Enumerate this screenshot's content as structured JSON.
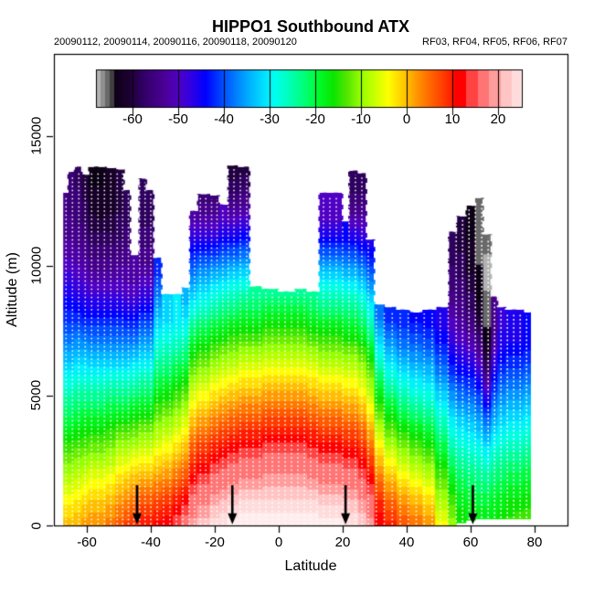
{
  "page": {
    "title": "HIPPO1 Southbound ATX",
    "subtitle_left": "20090112, 20090114, 20090116, 20090118, 20090120",
    "subtitle_right": "RF03, RF04, RF05, RF06, RF07"
  },
  "chart_data": {
    "type": "heatmap",
    "title": "HIPPO1 Southbound ATX",
    "xlabel": "Latitude",
    "ylabel": "Altitude (m)",
    "xlim": [
      -70.3,
      90.3
    ],
    "ylim": [
      0,
      18150
    ],
    "x_ticks": [
      -60,
      -40,
      -20,
      0,
      20,
      40,
      60,
      80
    ],
    "y_ticks": [
      0,
      5000,
      10000,
      15000
    ],
    "grid": false,
    "colorbar": {
      "position": "top-inside",
      "range": [
        -68,
        25.4
      ],
      "ticks": [
        -60,
        -50,
        -40,
        -30,
        -20,
        -10,
        0,
        10,
        20
      ]
    },
    "palette": {
      "cold_bands": [
        [
          -68.1,
          -67,
          "#b2b2b2"
        ],
        [
          -67,
          -66,
          "#8f8f8f"
        ],
        [
          -66,
          -65,
          "#696969"
        ],
        [
          -65,
          -64,
          "#3f3f3f"
        ]
      ],
      "stops": [
        [
          -64,
          "#0d0016"
        ],
        [
          -61,
          "#1c0030"
        ],
        [
          -57,
          "#35006e"
        ],
        [
          -53,
          "#4b0096"
        ],
        [
          -50,
          "#5000c3"
        ],
        [
          -47,
          "#2e00e6"
        ],
        [
          -44,
          "#0000ff"
        ],
        [
          -40,
          "#0050ff"
        ],
        [
          -35,
          "#00a8ff"
        ],
        [
          -31,
          "#00e4ff"
        ],
        [
          -29,
          "#00fff2"
        ],
        [
          -26,
          "#00ffbe"
        ],
        [
          -22,
          "#00ff6e"
        ],
        [
          -19,
          "#00fa28"
        ],
        [
          -16,
          "#0ae600"
        ],
        [
          -13,
          "#55e600"
        ],
        [
          -10,
          "#96ff00"
        ],
        [
          -7,
          "#c8ff00"
        ],
        [
          -4,
          "#ffff00"
        ],
        [
          0,
          "#ffbe00"
        ],
        [
          4,
          "#ff7800"
        ],
        [
          8,
          "#ff3c00"
        ],
        [
          10.5,
          "#ff1400"
        ]
      ],
      "warm_bands": [
        [
          10.5,
          13,
          "#ff0000"
        ],
        [
          13,
          15.5,
          "#ff4242"
        ],
        [
          15.5,
          18,
          "#ff7575"
        ],
        [
          18,
          20.5,
          "#ff9c9c"
        ],
        [
          20.5,
          23,
          "#ffc4c4"
        ],
        [
          23,
          25,
          "#ffdcdc"
        ],
        [
          25,
          26.2,
          "#ffeded"
        ]
      ],
      "band_quantize_c": 2,
      "overlay_color": "#ffffff",
      "arrow_color": "#000000",
      "axis_color": "#000000"
    },
    "columns": [
      {
        "lat0": -67.3,
        "lat1": -66,
        "top_m": 12800,
        "base_m": 0,
        "temps_c_by_km": [
          0,
          -4,
          -9,
          -14,
          -20,
          -25,
          -31,
          -37,
          -42,
          -46,
          -50,
          -53,
          -55
        ]
      },
      {
        "lat0": -66,
        "lat1": -64,
        "top_m": 13600,
        "base_m": 0,
        "temps_c_by_km": [
          0,
          -4,
          -9,
          -14,
          -20,
          -25,
          -31,
          -37,
          -42,
          -46,
          -50,
          -53,
          -55,
          -56
        ]
      },
      {
        "lat0": -64,
        "lat1": -61.5,
        "top_m": 13800,
        "base_m": 0,
        "temps_c_by_km": [
          1,
          -3,
          -8,
          -13,
          -19,
          -24,
          -30,
          -36,
          -42,
          -47,
          -51,
          -54,
          -56,
          -57,
          -58
        ]
      },
      {
        "lat0": -61.5,
        "lat1": -59.5,
        "top_m": 13500,
        "base_m": 0,
        "temps_c_by_km": [
          2,
          -2,
          -7,
          -13,
          -18,
          -24,
          -30,
          -36,
          -43,
          -48,
          -52,
          -55,
          -58,
          -60
        ]
      },
      {
        "lat0": -59.5,
        "lat1": -57,
        "top_m": 13800,
        "base_m": 0,
        "temps_c_by_km": [
          3,
          -1,
          -6,
          -12,
          -18,
          -24,
          -30,
          -37,
          -43,
          -49,
          -54,
          -58,
          -61,
          -63,
          -64
        ]
      },
      {
        "lat0": -57,
        "lat1": -54,
        "top_m": 13800,
        "base_m": 0,
        "temps_c_by_km": [
          3,
          -1,
          -6,
          -12,
          -18,
          -24,
          -30,
          -37,
          -43,
          -49,
          -54,
          -58,
          -62,
          -63,
          -64
        ]
      },
      {
        "lat0": -54,
        "lat1": -51,
        "top_m": 13750,
        "base_m": 0,
        "temps_c_by_km": [
          4,
          0,
          -5,
          -11,
          -17,
          -23,
          -30,
          -37,
          -43,
          -49,
          -54,
          -58,
          -61,
          -63
        ]
      },
      {
        "lat0": -51,
        "lat1": -48.3,
        "top_m": 13700,
        "base_m": 0,
        "temps_c_by_km": [
          6,
          2,
          -3,
          -9,
          -16,
          -23,
          -30,
          -37,
          -43,
          -49,
          -53,
          -57,
          -59,
          -61
        ]
      },
      {
        "lat0": -48.3,
        "lat1": -46.3,
        "top_m": 12900,
        "base_m": 0,
        "temps_c_by_km": [
          8,
          3,
          -2,
          -9,
          -16,
          -23,
          -30,
          -37,
          -44,
          -50,
          -53,
          -56,
          -58
        ]
      },
      {
        "lat0": -46.3,
        "lat1": -43.8,
        "top_m": 10400,
        "base_m": 0,
        "temps_c_by_km": [
          9,
          4,
          -1,
          -8,
          -15,
          -22,
          -29,
          -37,
          -44,
          -50,
          -53
        ]
      },
      {
        "lat0": -43.8,
        "lat1": -41.3,
        "top_m": 13350,
        "base_m": 0,
        "temps_c_by_km": [
          11,
          6,
          0,
          -7,
          -14,
          -21,
          -28,
          -35,
          -42,
          -48,
          -53,
          -56,
          -58,
          -59
        ]
      },
      {
        "lat0": -41.3,
        "lat1": -39,
        "top_m": 12900,
        "base_m": 0,
        "temps_c_by_km": [
          11,
          6,
          0,
          -7,
          -14,
          -21,
          -28,
          -35,
          -42,
          -48,
          -53,
          -56,
          -58
        ]
      },
      {
        "lat0": -39,
        "lat1": -36.5,
        "top_m": 10300,
        "base_m": 0,
        "temps_c_by_km": [
          12,
          7,
          1,
          -5,
          -11,
          -17,
          -23,
          -28,
          -33,
          -38,
          -43
        ]
      },
      {
        "lat0": -36.5,
        "lat1": -33,
        "top_m": 8900,
        "base_m": 0,
        "temps_c_by_km": [
          13,
          8,
          2,
          -4,
          -10,
          -16,
          -22,
          -27,
          -32
        ]
      },
      {
        "lat0": -33,
        "lat1": -30.5,
        "top_m": 8900,
        "base_m": 0,
        "temps_c_by_km": [
          15,
          10,
          4,
          -2,
          -8,
          -14,
          -20,
          -26,
          -31
        ]
      },
      {
        "lat0": -30.5,
        "lat1": -28,
        "top_m": 9150,
        "base_m": 0,
        "temps_c_by_km": [
          17,
          12,
          6,
          0,
          -6,
          -12,
          -19,
          -25,
          -31,
          -35
        ]
      },
      {
        "lat0": -28,
        "lat1": -25.5,
        "top_m": 12100,
        "base_m": 0,
        "temps_c_by_km": [
          20,
          16,
          11,
          6,
          0,
          -6,
          -12,
          -19,
          -26,
          -33,
          -40,
          -46,
          -53
        ]
      },
      {
        "lat0": -25.5,
        "lat1": -21.5,
        "top_m": 12750,
        "base_m": 0,
        "temps_c_by_km": [
          22,
          18,
          13,
          8,
          2,
          -4,
          -10,
          -17,
          -24,
          -31,
          -38,
          -46,
          -53,
          -58
        ]
      },
      {
        "lat0": -21.5,
        "lat1": -18.5,
        "top_m": 12700,
        "base_m": 0,
        "temps_c_by_km": [
          24,
          20,
          15,
          10,
          4,
          -2,
          -8,
          -15,
          -22,
          -29,
          -37,
          -46,
          -53,
          -58
        ]
      },
      {
        "lat0": -18.5,
        "lat1": -16,
        "top_m": 12350,
        "base_m": 0,
        "temps_c_by_km": [
          25,
          21,
          16,
          11,
          5,
          -1,
          -7,
          -14,
          -21,
          -28,
          -36,
          -44,
          -51
        ]
      },
      {
        "lat0": -16,
        "lat1": -12.5,
        "top_m": 13850,
        "base_m": 0,
        "temps_c_by_km": [
          26,
          22,
          17,
          12,
          6,
          0,
          -6,
          -13,
          -20,
          -27,
          -35,
          -44,
          -52,
          -58,
          -62
        ]
      },
      {
        "lat0": -12.5,
        "lat1": -9,
        "top_m": 13800,
        "base_m": 0,
        "temps_c_by_km": [
          27,
          23,
          18,
          13,
          7,
          1,
          -5,
          -12,
          -19,
          -26,
          -34,
          -43,
          -51,
          -57,
          -61
        ]
      },
      {
        "lat0": -9,
        "lat1": -5,
        "top_m": 9200,
        "base_m": 0,
        "temps_c_by_km": [
          27,
          23,
          18,
          13,
          7,
          1,
          -5,
          -12,
          -19,
          -25
        ]
      },
      {
        "lat0": -5,
        "lat1": 0,
        "top_m": 9100,
        "base_m": 0,
        "temps_c_by_km": [
          27,
          23,
          19,
          14,
          8,
          2,
          -4,
          -11,
          -18,
          -24
        ]
      },
      {
        "lat0": 0,
        "lat1": 5,
        "top_m": 9000,
        "base_m": 0,
        "temps_c_by_km": [
          27,
          23,
          19,
          14,
          8,
          2,
          -4,
          -11,
          -18,
          -24
        ]
      },
      {
        "lat0": 5,
        "lat1": 9,
        "top_m": 9100,
        "base_m": 0,
        "temps_c_by_km": [
          27,
          23,
          19,
          14,
          8,
          2,
          -4,
          -11,
          -18,
          -24
        ]
      },
      {
        "lat0": 9,
        "lat1": 12.5,
        "top_m": 9000,
        "base_m": 0,
        "temps_c_by_km": [
          27,
          23,
          18,
          13,
          7,
          1,
          -5,
          -12,
          -19,
          -25
        ]
      },
      {
        "lat0": 12.5,
        "lat1": 16.5,
        "top_m": 12800,
        "base_m": 0,
        "temps_c_by_km": [
          26,
          22,
          17,
          12,
          6,
          0,
          -6,
          -13,
          -20,
          -27,
          -35,
          -44,
          -51
        ]
      },
      {
        "lat0": 16.5,
        "lat1": 20,
        "top_m": 12800,
        "base_m": 0,
        "temps_c_by_km": [
          26,
          22,
          17,
          12,
          6,
          0,
          -6,
          -13,
          -20,
          -27,
          -35,
          -44,
          -51
        ]
      },
      {
        "lat0": 20,
        "lat1": 21.8,
        "top_m": 11700,
        "base_m": 0,
        "temps_c_by_km": [
          25,
          21,
          16,
          11,
          5,
          -1,
          -7,
          -14,
          -21,
          -28,
          -36,
          -44
        ]
      },
      {
        "lat0": 21.8,
        "lat1": 25,
        "top_m": 13650,
        "base_m": 0,
        "temps_c_by_km": [
          25,
          21,
          16,
          11,
          5,
          -1,
          -7,
          -14,
          -21,
          -28,
          -36,
          -45,
          -53,
          -58
        ]
      },
      {
        "lat0": 25,
        "lat1": 27.5,
        "top_m": 13550,
        "base_m": 0,
        "temps_c_by_km": [
          23,
          19,
          14,
          9,
          3,
          -3,
          -9,
          -16,
          -23,
          -30,
          -38,
          -46,
          -53,
          -58
        ]
      },
      {
        "lat0": 27.5,
        "lat1": 30,
        "top_m": 11000,
        "base_m": 0,
        "temps_c_by_km": [
          20,
          16,
          11,
          5,
          -1,
          -7,
          -13,
          -20,
          -27,
          -34,
          -41,
          -47
        ]
      },
      {
        "lat0": 30,
        "lat1": 33,
        "top_m": 8500,
        "base_m": 0,
        "temps_c_by_km": [
          13,
          9,
          3,
          -3,
          -10,
          -17,
          -24,
          -31,
          -38
        ]
      },
      {
        "lat0": 33,
        "lat1": 37,
        "top_m": 8400,
        "base_m": 0,
        "temps_c_by_km": [
          10,
          5,
          -1,
          -8,
          -15,
          -22,
          -29,
          -36,
          -42
        ]
      },
      {
        "lat0": 37,
        "lat1": 41,
        "top_m": 8300,
        "base_m": 0,
        "temps_c_by_km": [
          7,
          2,
          -4,
          -11,
          -18,
          -25,
          -32,
          -38,
          -43
        ]
      },
      {
        "lat0": 41,
        "lat1": 45,
        "top_m": 8200,
        "base_m": 0,
        "temps_c_by_km": [
          5,
          0,
          -6,
          -13,
          -20,
          -27,
          -33,
          -39,
          -44
        ]
      },
      {
        "lat0": 45,
        "lat1": 49,
        "top_m": 8300,
        "base_m": 0,
        "temps_c_by_km": [
          3,
          -2,
          -8,
          -15,
          -22,
          -28,
          -34,
          -40,
          -45
        ]
      },
      {
        "lat0": 49,
        "lat1": 53,
        "top_m": 8400,
        "base_m": 0,
        "temps_c_by_km": [
          -4,
          -9,
          -14,
          -20,
          -26,
          -32,
          -38,
          -43,
          -47
        ]
      },
      {
        "lat0": 53,
        "lat1": 55.5,
        "top_m": 11300,
        "base_m": 0,
        "temps_c_by_km": [
          -10,
          -14,
          -19,
          -25,
          -30,
          -36,
          -42,
          -47,
          -51,
          -55,
          -57,
          -58
        ]
      },
      {
        "lat0": 55.5,
        "lat1": 58.5,
        "top_m": 11900,
        "base_m": 100,
        "temps_c_by_km": [
          -15,
          -18,
          -22,
          -27,
          -32,
          -38,
          -44,
          -49,
          -53,
          -56,
          -58,
          -60
        ]
      },
      {
        "lat0": 58.5,
        "lat1": 61.5,
        "top_m": 12300,
        "base_m": 200,
        "temps_c_by_km": [
          -16,
          -19,
          -23,
          -28,
          -33,
          -39,
          -45,
          -51,
          -56,
          -59,
          -62,
          -63,
          -64
        ]
      },
      {
        "lat0": 61.5,
        "lat1": 64,
        "top_m": 12600,
        "base_m": 250,
        "temps_c_by_km": [
          -16,
          -20,
          -24,
          -29,
          -35,
          -41,
          -48,
          -55,
          -61,
          -64,
          -65,
          -66,
          -66
        ]
      },
      {
        "lat0": 64,
        "lat1": 66.5,
        "top_m": 11200,
        "base_m": 250,
        "temps_c_by_km": [
          -16,
          -20,
          -25,
          -31,
          -38,
          -47,
          -57,
          -63,
          -66,
          -67,
          -68,
          -66
        ]
      },
      {
        "lat0": 66.5,
        "lat1": 68.5,
        "top_m": 8800,
        "base_m": 250,
        "temps_c_by_km": [
          -16,
          -19,
          -23,
          -28,
          -34,
          -40,
          -46,
          -52,
          -55
        ]
      },
      {
        "lat0": 68.5,
        "lat1": 71,
        "top_m": 8400,
        "base_m": 250,
        "temps_c_by_km": [
          -15,
          -18,
          -22,
          -27,
          -32,
          -37,
          -42,
          -46,
          -48
        ]
      },
      {
        "lat0": 71,
        "lat1": 74,
        "top_m": 8300,
        "base_m": 250,
        "temps_c_by_km": [
          -14,
          -17,
          -21,
          -26,
          -31,
          -36,
          -41,
          -45,
          -46
        ]
      },
      {
        "lat0": 74,
        "lat1": 76.5,
        "top_m": 8300,
        "base_m": 250,
        "temps_c_by_km": [
          -13,
          -17,
          -21,
          -26,
          -31,
          -36,
          -41,
          -45,
          -46
        ]
      },
      {
        "lat0": 76.5,
        "lat1": 78.7,
        "top_m": 8200,
        "base_m": 250,
        "temps_c_by_km": [
          -13,
          -16,
          -20,
          -25,
          -30,
          -35,
          -40,
          -44,
          -45
        ]
      }
    ],
    "profile_line_lats": [
      -66.5,
      -64.5,
      -62.5,
      -60.5,
      -58.5,
      -56.5,
      -54.5,
      -52.5,
      -50.5,
      -48.8,
      -47,
      -45.3,
      -43.5,
      -41.8,
      -40,
      -38,
      -36,
      -34,
      -32,
      -30,
      -28,
      -26.3,
      -24.5,
      -22.8,
      -21,
      -19.3,
      -17.5,
      -15.8,
      -14,
      -12,
      -10,
      -8,
      -6,
      -4,
      -2,
      0,
      2,
      4,
      6,
      8,
      10,
      12,
      14,
      16,
      18,
      20,
      22,
      24,
      26,
      28,
      30.5,
      33,
      35.5,
      38,
      40.5,
      43,
      45.5,
      48,
      50.5,
      53,
      55.5,
      57.5,
      59.5,
      61.5,
      63.5,
      65.5,
      67.5,
      69.5,
      71.5,
      73.5,
      75.5,
      77.5
    ],
    "arrow_lats": [
      -44.3,
      -14.5,
      20.9,
      60.7
    ]
  }
}
